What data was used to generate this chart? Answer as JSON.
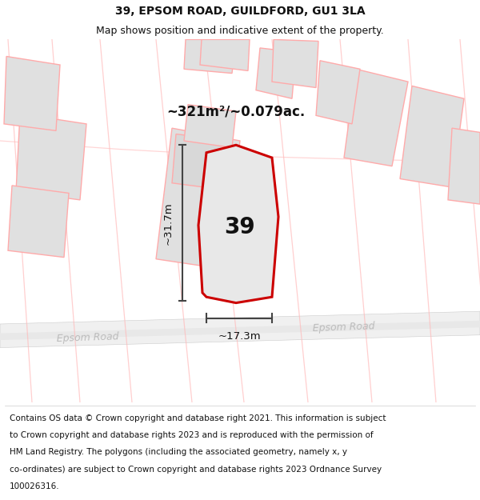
{
  "title": "39, EPSOM ROAD, GUILDFORD, GU1 3LA",
  "subtitle": "Map shows position and indicative extent of the property.",
  "area_label": "~321m²/~0.079ac.",
  "property_number": "39",
  "dim_height": "~31.7m",
  "dim_width": "~17.3m",
  "road_label_left": "Epsom Road",
  "road_label_right": "Epsom Road",
  "footer_lines": [
    "Contains OS data © Crown copyright and database right 2021. This information is subject",
    "to Crown copyright and database rights 2023 and is reproduced with the permission of",
    "HM Land Registry. The polygons (including the associated geometry, namely x, y",
    "co-ordinates) are subject to Crown copyright and database rights 2023 Ordnance Survey",
    "100026316."
  ],
  "title_fontsize": 10,
  "subtitle_fontsize": 9,
  "footer_fontsize": 7.5,
  "map_bg": "#ffffff",
  "property_fill": "#e8e8e8",
  "property_edge": "#cc0000",
  "neighbor_fill": "#e0e0e0",
  "neighbor_edge": "#ffaaaa",
  "road_line_color": "#ffbbbb",
  "road_band_color": "#eeeeee",
  "road_band_edge": "#cccccc",
  "dim_color": "#444444",
  "text_color": "#111111",
  "road_text_color": "#bbbbbb",
  "area_text_color": "#111111"
}
